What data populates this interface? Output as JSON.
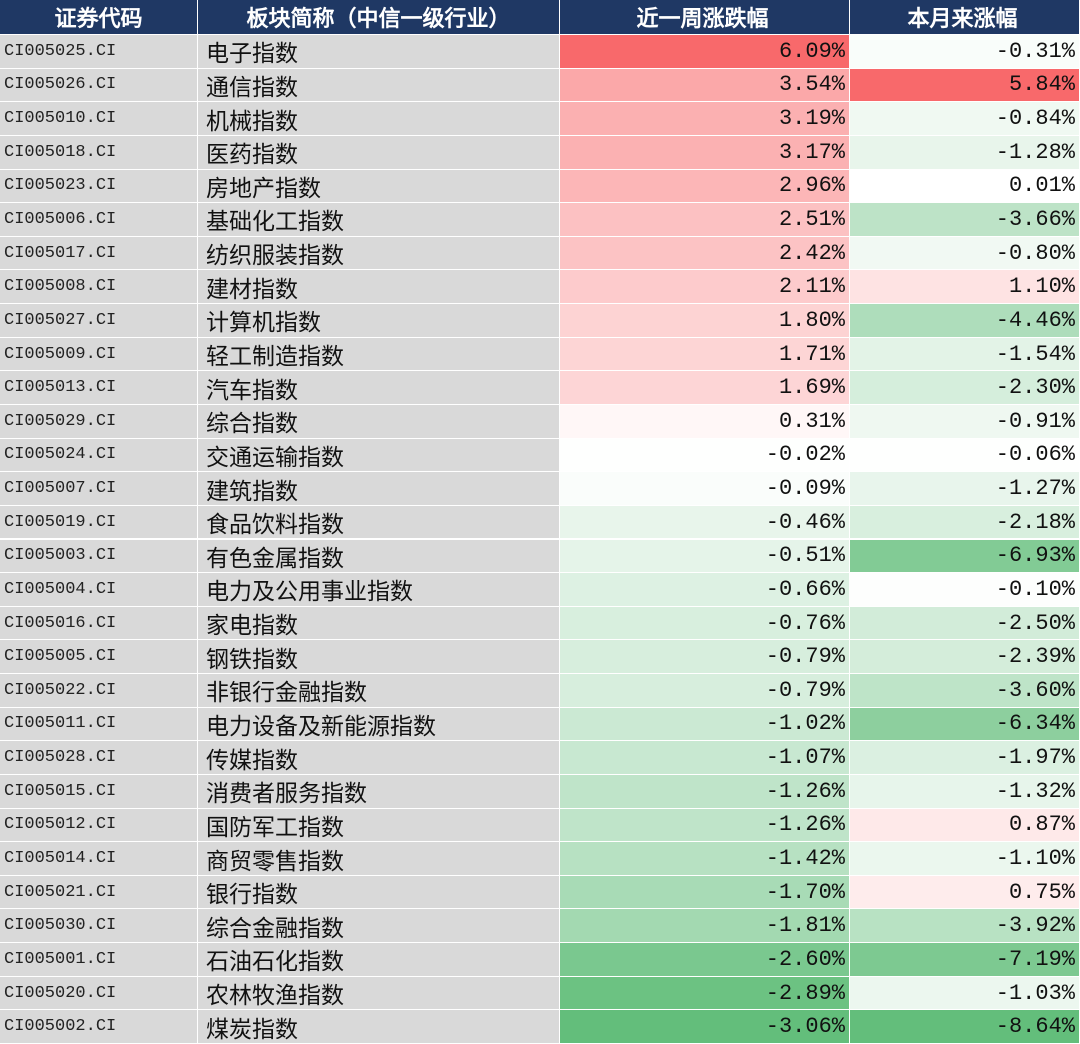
{
  "table": {
    "headers": [
      "证券代码",
      "板块简称（中信一级行业）",
      "近一周涨跌幅",
      "本月来涨幅"
    ],
    "rows": [
      [
        "CI005025.CI",
        "电子指数",
        "6.09%",
        "-0.31%"
      ],
      [
        "CI005026.CI",
        "通信指数",
        "3.54%",
        "5.84%"
      ],
      [
        "CI005010.CI",
        "机械指数",
        "3.19%",
        "-0.84%"
      ],
      [
        "CI005018.CI",
        "医药指数",
        "3.17%",
        "-1.28%"
      ],
      [
        "CI005023.CI",
        "房地产指数",
        "2.96%",
        "0.01%"
      ],
      [
        "CI005006.CI",
        "基础化工指数",
        "2.51%",
        "-3.66%"
      ],
      [
        "CI005017.CI",
        "纺织服装指数",
        "2.42%",
        "-0.80%"
      ],
      [
        "CI005008.CI",
        "建材指数",
        "2.11%",
        "1.10%"
      ],
      [
        "CI005027.CI",
        "计算机指数",
        "1.80%",
        "-4.46%"
      ],
      [
        "CI005009.CI",
        "轻工制造指数",
        "1.71%",
        "-1.54%"
      ],
      [
        "CI005013.CI",
        "汽车指数",
        "1.69%",
        "-2.30%"
      ],
      [
        "CI005029.CI",
        "综合指数",
        "0.31%",
        "-0.91%"
      ],
      [
        "CI005024.CI",
        "交通运输指数",
        "-0.02%",
        "-0.06%"
      ],
      [
        "CI005007.CI",
        "建筑指数",
        "-0.09%",
        "-1.27%"
      ],
      [
        "CI005019.CI",
        "食品饮料指数",
        "-0.46%",
        "-2.18%"
      ],
      [
        "CI005003.CI",
        "有色金属指数",
        "-0.51%",
        "-6.93%"
      ],
      [
        "CI005004.CI",
        "电力及公用事业指数",
        "-0.66%",
        "-0.10%"
      ],
      [
        "CI005016.CI",
        "家电指数",
        "-0.76%",
        "-2.50%"
      ],
      [
        "CI005005.CI",
        "钢铁指数",
        "-0.79%",
        "-2.39%"
      ],
      [
        "CI005022.CI",
        "非银行金融指数",
        "-0.79%",
        "-3.60%"
      ],
      [
        "CI005011.CI",
        "电力设备及新能源指数",
        "-1.02%",
        "-6.34%"
      ],
      [
        "CI005028.CI",
        "传媒指数",
        "-1.07%",
        "-1.97%"
      ],
      [
        "CI005015.CI",
        "消费者服务指数",
        "-1.26%",
        "-1.32%"
      ],
      [
        "CI005012.CI",
        "国防军工指数",
        "-1.26%",
        "0.87%"
      ],
      [
        "CI005014.CI",
        "商贸零售指数",
        "-1.42%",
        "-1.10%"
      ],
      [
        "CI005021.CI",
        "银行指数",
        "-1.70%",
        "0.75%"
      ],
      [
        "CI005030.CI",
        "综合金融指数",
        "-1.81%",
        "-3.92%"
      ],
      [
        "CI005001.CI",
        "石油石化指数",
        "-2.60%",
        "-7.19%"
      ],
      [
        "CI005020.CI",
        "农林牧渔指数",
        "-2.89%",
        "-1.03%"
      ],
      [
        "CI005002.CI",
        "煤炭指数",
        "-3.06%",
        "-8.64%"
      ]
    ]
  }
}
